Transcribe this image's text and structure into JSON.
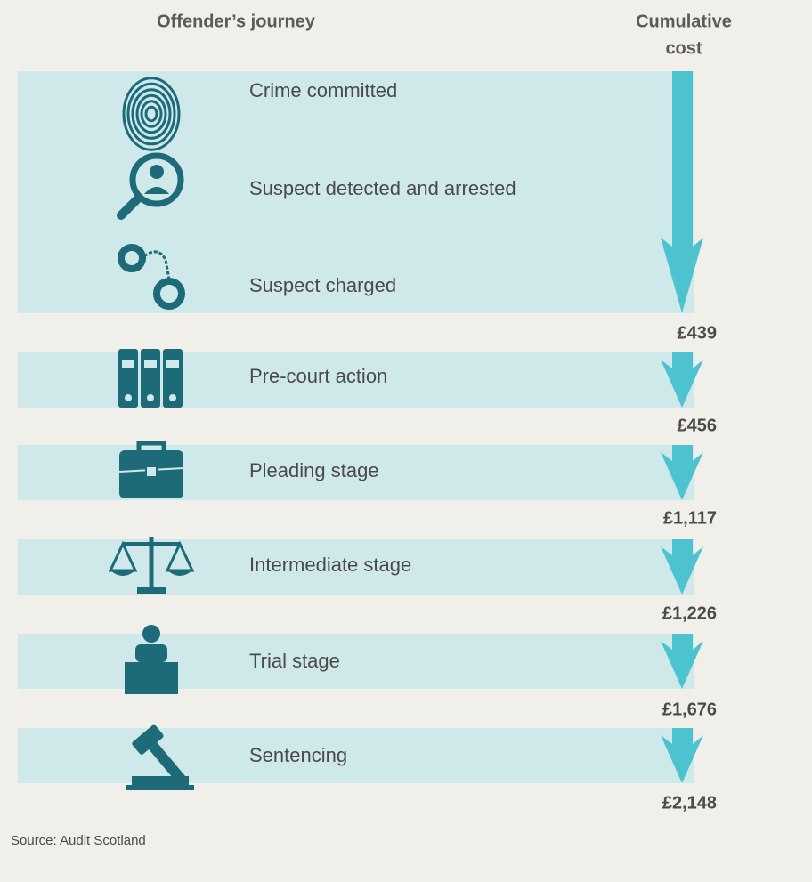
{
  "header": {
    "journey": "Offender’s journey",
    "cost_lines": [
      "Cumulative",
      "cost"
    ]
  },
  "groups": [
    {
      "steps": [
        "Crime committed",
        "Suspect detected and arrested",
        "Suspect charged"
      ],
      "cost": "£439"
    },
    {
      "steps": [
        "Pre-court action"
      ],
      "cost": "£456"
    },
    {
      "steps": [
        "Pleading stage"
      ],
      "cost": "£1,117"
    },
    {
      "steps": [
        "Intermediate stage"
      ],
      "cost": "£1,226"
    },
    {
      "steps": [
        "Trial stage"
      ],
      "cost": "£1,676"
    },
    {
      "steps": [
        "Sentencing"
      ],
      "cost": "£2,148"
    }
  ],
  "source": "Source: Audit Scotland"
}
